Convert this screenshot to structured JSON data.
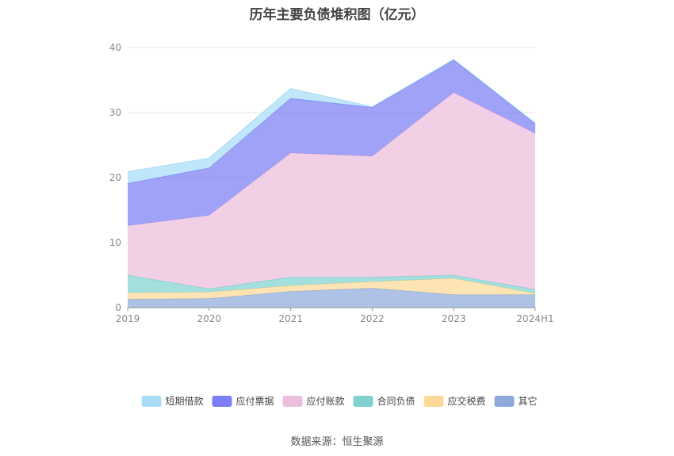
{
  "chart_data": {
    "type": "area",
    "stacked": true,
    "title": "历年主要负债堆积图（亿元）",
    "categories": [
      "2019",
      "2020",
      "2021",
      "2022",
      "2023",
      "2024H1"
    ],
    "ylim": [
      0,
      40
    ],
    "yticks": [
      0,
      10,
      20,
      30,
      40
    ],
    "grid": true,
    "legend_position": "bottom",
    "series": [
      {
        "name": "其它",
        "color": "#8eaadb",
        "values": [
          1.3,
          1.4,
          2.5,
          3.0,
          2.0,
          2.0
        ]
      },
      {
        "name": "应交税费",
        "color": "#fdd898",
        "values": [
          1.0,
          1.0,
          0.9,
          1.0,
          2.5,
          0.2
        ]
      },
      {
        "name": "合同负债",
        "color": "#7fd2d0",
        "values": [
          2.7,
          0.5,
          1.3,
          0.7,
          0.5,
          0.6
        ]
      },
      {
        "name": "应付账款",
        "color": "#ebbedd",
        "values": [
          7.6,
          11.3,
          19.1,
          18.6,
          28.1,
          24.0
        ]
      },
      {
        "name": "应付票据",
        "color": "#7b7ef4",
        "values": [
          6.5,
          7.3,
          8.4,
          7.5,
          5.0,
          1.5
        ]
      },
      {
        "name": "短期借款",
        "color": "#a8dcf6",
        "values": [
          1.8,
          1.5,
          1.5,
          0.1,
          0.1,
          0.1
        ]
      }
    ]
  },
  "source": "数据来源：恒生聚源"
}
